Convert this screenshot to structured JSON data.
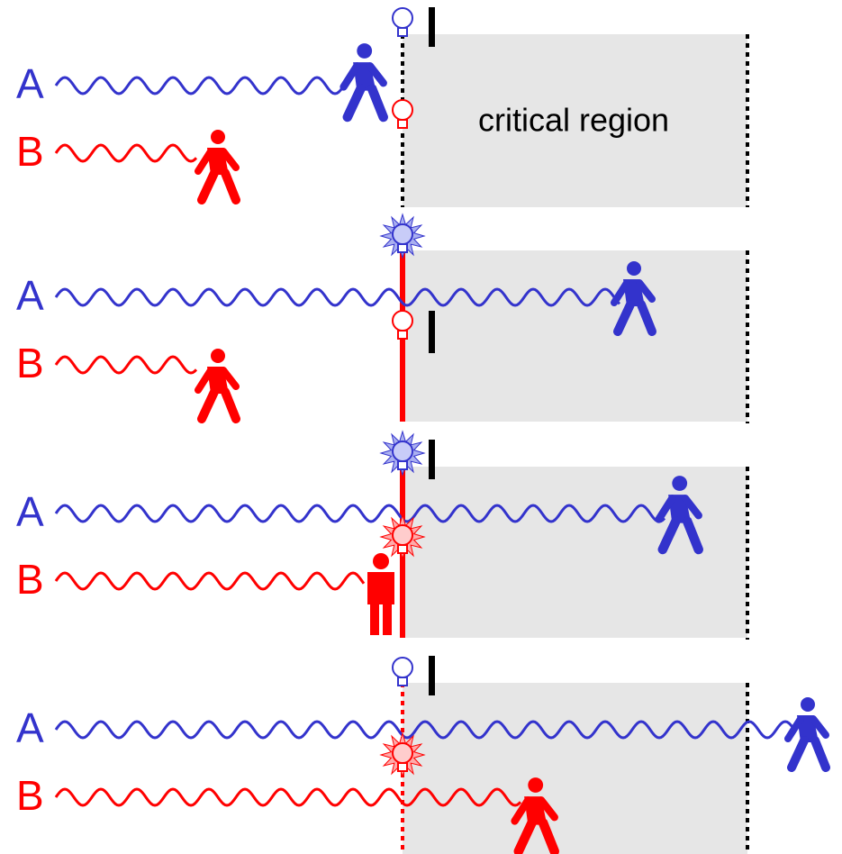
{
  "region_label": "critical region",
  "panels": [
    {
      "a_label": "A",
      "b_label": "B"
    },
    {
      "a_label": "A",
      "b_label": "B"
    },
    {
      "a_label": "A",
      "b_label": "B"
    },
    {
      "a_label": "A",
      "b_label": "B"
    }
  ]
}
